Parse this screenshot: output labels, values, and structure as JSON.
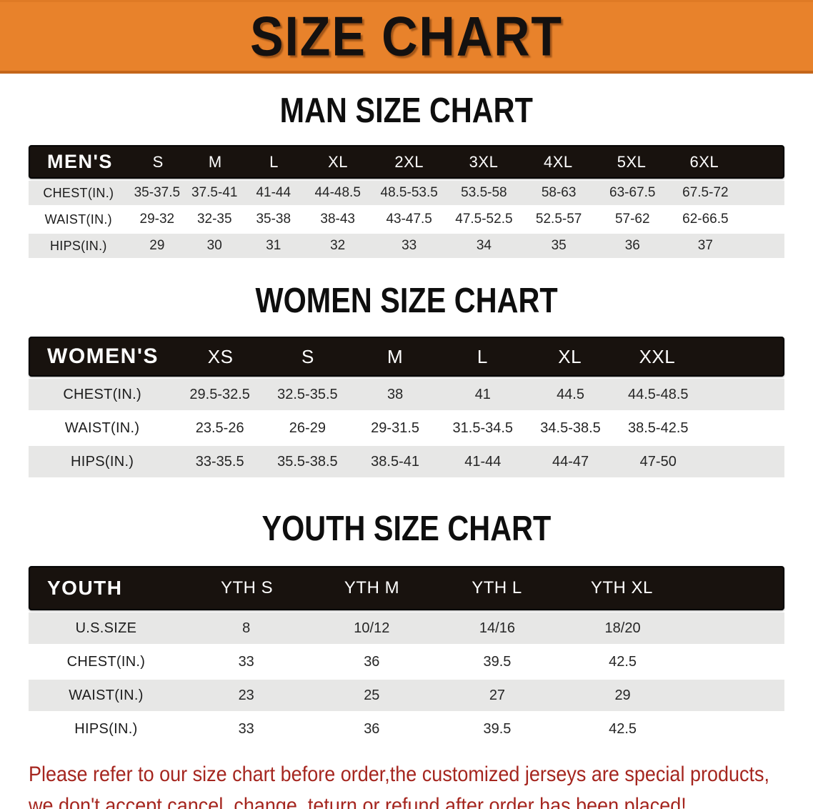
{
  "banner": {
    "title": "SIZE CHART"
  },
  "colors": {
    "banner_orange": "#E8822B",
    "banner_orange_dark": "#C4661B",
    "table_header_black": "#18120E",
    "row_stripe_gray": "#E7E7E6",
    "disclaimer_red": "#A5261F"
  },
  "sections": [
    {
      "id": "men",
      "title": "MAN SIZE CHART",
      "corner_label": "MEN'S",
      "sizes": [
        "S",
        "M",
        "L",
        "XL",
        "2XL",
        "3XL",
        "4XL",
        "5XL",
        "6XL"
      ],
      "rows": [
        {
          "label": "CHEST(IN.)",
          "values": [
            "35-37.5",
            "37.5-41",
            "41-44",
            "44-48.5",
            "48.5-53.5",
            "53.5-58",
            "58-63",
            "63-67.5",
            "67.5-72"
          ]
        },
        {
          "label": "WAIST(IN.)",
          "values": [
            "29-32",
            "32-35",
            "35-38",
            "38-43",
            "43-47.5",
            "47.5-52.5",
            "52.5-57",
            "57-62",
            "62-66.5"
          ]
        },
        {
          "label": "HIPS(IN.)",
          "values": [
            "29",
            "30",
            "31",
            "32",
            "33",
            "34",
            "35",
            "36",
            "37"
          ]
        }
      ]
    },
    {
      "id": "women",
      "title": "WOMEN SIZE CHART",
      "corner_label": "WOMEN'S",
      "sizes": [
        "XS",
        "S",
        "M",
        "L",
        "XL",
        "XXL"
      ],
      "rows": [
        {
          "label": "CHEST(IN.)",
          "values": [
            "29.5-32.5",
            "32.5-35.5",
            "38",
            "41",
            "44.5",
            "44.5-48.5"
          ]
        },
        {
          "label": "WAIST(IN.)",
          "values": [
            "23.5-26",
            "26-29",
            "29-31.5",
            "31.5-34.5",
            "34.5-38.5",
            "38.5-42.5"
          ]
        },
        {
          "label": "HIPS(IN.)",
          "values": [
            "33-35.5",
            "35.5-38.5",
            "38.5-41",
            "41-44",
            "44-47",
            "47-50"
          ]
        }
      ]
    },
    {
      "id": "youth",
      "title": "YOUTH SIZE CHART",
      "corner_label": "YOUTH",
      "sizes": [
        "YTH S",
        "YTH M",
        "YTH L",
        "YTH XL"
      ],
      "rows": [
        {
          "label": "U.S.SIZE",
          "values": [
            "8",
            "10/12",
            "14/16",
            "18/20"
          ]
        },
        {
          "label": "CHEST(IN.)",
          "values": [
            "33",
            "36",
            "39.5",
            "42.5"
          ]
        },
        {
          "label": "WAIST(IN.)",
          "values": [
            "23",
            "25",
            "27",
            "29"
          ]
        },
        {
          "label": "HIPS(IN.)",
          "values": [
            "33",
            "36",
            "39.5",
            "42.5"
          ]
        }
      ]
    }
  ],
  "disclaimer": {
    "line1": "Please refer to our size chart before order,the customized jerseys are special products,",
    "line2": "we don't accept cancel, change, teturn or refund after order has been placed!"
  }
}
